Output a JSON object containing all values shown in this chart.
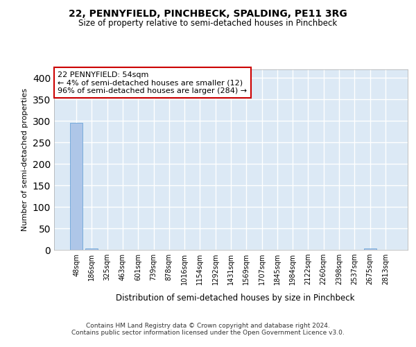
{
  "title": "22, PENNYFIELD, PINCHBECK, SPALDING, PE11 3RG",
  "subtitle": "Size of property relative to semi-detached houses in Pinchbeck",
  "xlabel": "Distribution of semi-detached houses by size in Pinchbeck",
  "ylabel": "Number of semi-detached properties",
  "categories": [
    "48sqm",
    "186sqm",
    "325sqm",
    "463sqm",
    "601sqm",
    "739sqm",
    "878sqm",
    "1016sqm",
    "1154sqm",
    "1292sqm",
    "1431sqm",
    "1569sqm",
    "1707sqm",
    "1845sqm",
    "1984sqm",
    "2122sqm",
    "2260sqm",
    "2398sqm",
    "2537sqm",
    "2675sqm",
    "2813sqm"
  ],
  "values": [
    296,
    4,
    0,
    0,
    0,
    0,
    0,
    0,
    0,
    0,
    0,
    0,
    0,
    0,
    0,
    0,
    0,
    0,
    0,
    4,
    0
  ],
  "bar_color": "#aec6e8",
  "bar_edge_color": "#5b9bd5",
  "annotation_text": "22 PENNYFIELD: 54sqm\n← 4% of semi-detached houses are smaller (12)\n96% of semi-detached houses are larger (284) →",
  "annotation_box_color": "#ffffff",
  "annotation_box_edge": "#cc0000",
  "ylim": [
    0,
    420
  ],
  "yticks": [
    0,
    50,
    100,
    150,
    200,
    250,
    300,
    350,
    400
  ],
  "bg_color": "#dce9f5",
  "grid_color": "#ffffff",
  "footer_line1": "Contains HM Land Registry data © Crown copyright and database right 2024.",
  "footer_line2": "Contains public sector information licensed under the Open Government Licence v3.0."
}
